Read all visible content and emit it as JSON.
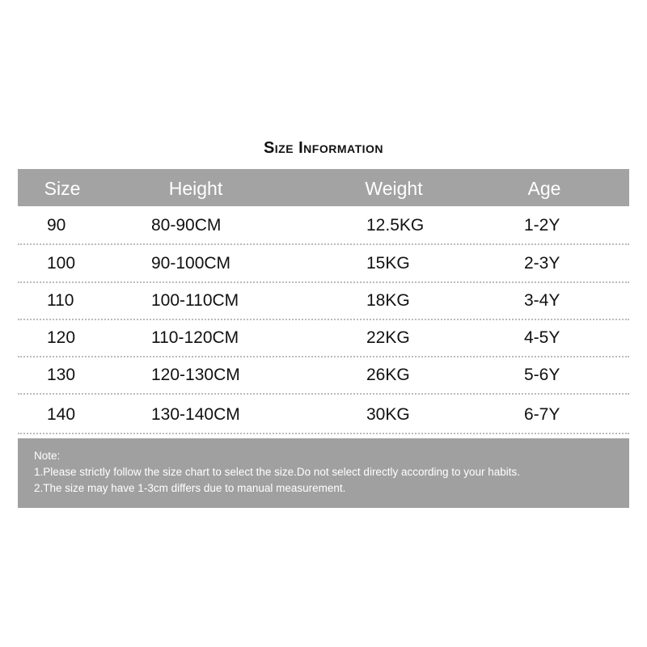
{
  "title": "Size Information",
  "columns": [
    "Size",
    "Height",
    "Weight",
    "Age"
  ],
  "rows": [
    [
      "90",
      "80-90CM",
      "12.5KG",
      "1-2Y"
    ],
    [
      "100",
      "90-100CM",
      "15KG",
      "2-3Y"
    ],
    [
      "110",
      "100-110CM",
      "18KG",
      "3-4Y"
    ],
    [
      "120",
      "110-120CM",
      "22KG",
      "4-5Y"
    ],
    [
      "130",
      "120-130CM",
      "26KG",
      "5-6Y"
    ],
    [
      "140",
      "130-140CM",
      "30KG",
      "6-7Y"
    ]
  ],
  "note": {
    "heading": "Note:",
    "lines": [
      "1.Please strictly follow the size chart to select the size.Do not select directly according to your habits.",
      "2.The size may have 1-3cm differs due to manual measurement."
    ]
  },
  "colors": {
    "header_bg": "#a3a3a3",
    "note_bg": "#a0a0a0",
    "text": "#111111"
  }
}
